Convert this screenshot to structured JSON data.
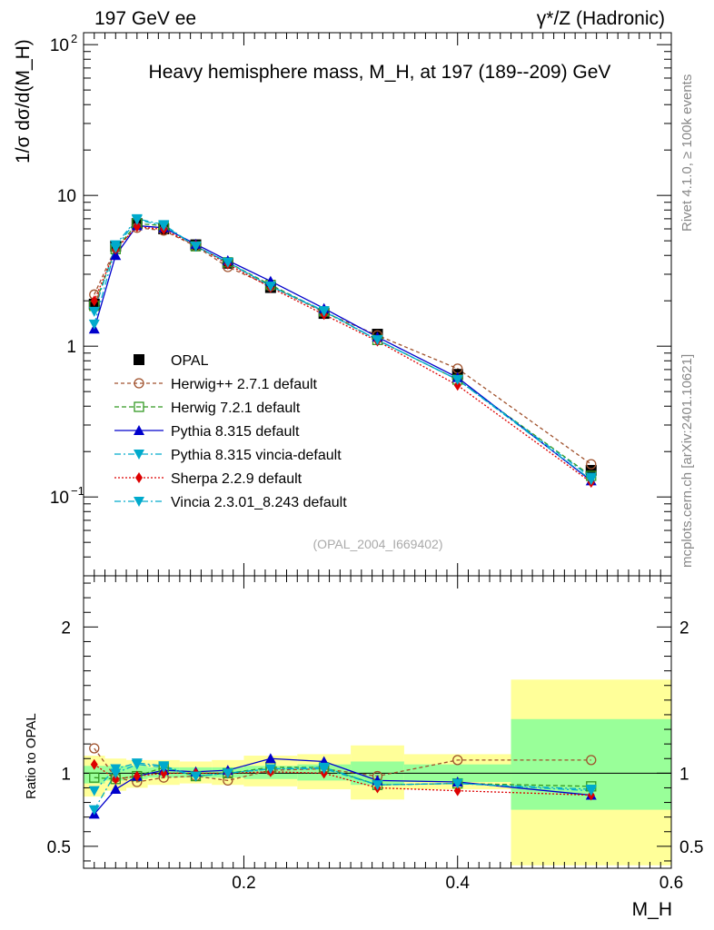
{
  "header": {
    "left_label": "197 GeV ee",
    "right_label": "γ*/Z (Hadronic)",
    "side_label_top": "Rivet 4.1.0, ≥ 100k events",
    "side_label_bottom": "mcplots.cern.ch [arXiv:2401.10621]",
    "watermark": "(OPAL_2004_I669402)"
  },
  "chart_data": {
    "type": "line",
    "title": "Heavy hemisphere mass, M_H, at 197 (189--209) GeV",
    "xlabel": "M_H",
    "ylabel": "1/σ dσ/d(M_H)",
    "ratio_ylabel": "Ratio to OPAL",
    "xlim": [
      0.05,
      0.6
    ],
    "ylim": [
      0.03,
      120
    ],
    "ratio_ylim": [
      0.35,
      2.35
    ],
    "yscale": "log",
    "x_ticks": [
      0.2,
      0.4,
      0.6
    ],
    "y_ticks": [
      0.1,
      1,
      10,
      100
    ],
    "ratio_ticks": [
      0.5,
      1,
      2
    ],
    "x": [
      0.06,
      0.08,
      0.1,
      0.125,
      0.155,
      0.185,
      0.225,
      0.275,
      0.325,
      0.4,
      0.525
    ],
    "bins": [
      [
        0.05,
        0.07
      ],
      [
        0.07,
        0.09
      ],
      [
        0.09,
        0.11
      ],
      [
        0.11,
        0.14
      ],
      [
        0.14,
        0.17
      ],
      [
        0.17,
        0.2
      ],
      [
        0.2,
        0.25
      ],
      [
        0.25,
        0.3
      ],
      [
        0.3,
        0.35
      ],
      [
        0.35,
        0.45
      ],
      [
        0.45,
        0.6
      ]
    ],
    "band_outer": [
      [
        0.84,
        1.12
      ],
      [
        0.88,
        1.1
      ],
      [
        0.9,
        1.09
      ],
      [
        0.92,
        1.09
      ],
      [
        0.93,
        1.08
      ],
      [
        0.92,
        1.09
      ],
      [
        0.91,
        1.12
      ],
      [
        0.89,
        1.13
      ],
      [
        0.82,
        1.19
      ],
      [
        0.89,
        1.13
      ],
      [
        0.37,
        1.64
      ]
    ],
    "band_inner": [
      [
        0.93,
        1.05
      ],
      [
        0.95,
        1.05
      ],
      [
        0.96,
        1.05
      ],
      [
        0.97,
        1.04
      ],
      [
        0.97,
        1.04
      ],
      [
        0.97,
        1.04
      ],
      [
        0.96,
        1.05
      ],
      [
        0.95,
        1.06
      ],
      [
        0.92,
        1.08
      ],
      [
        0.94,
        1.06
      ],
      [
        0.75,
        1.37
      ]
    ],
    "data": {
      "name": "OPAL",
      "values": [
        1.9,
        4.6,
        6.5,
        6.0,
        4.7,
        3.55,
        2.45,
        1.65,
        1.2,
        0.65,
        0.15
      ]
    },
    "series": [
      {
        "name": "Herwig++ 2.7.1 default",
        "color": "#a0522d",
        "marker": "circle-open",
        "dash": "4,3",
        "values": [
          2.2,
          4.5,
          6.1,
          5.85,
          4.6,
          3.35,
          2.5,
          1.68,
          1.18,
          0.71,
          0.165
        ],
        "ratio": [
          1.17,
          0.97,
          0.94,
          0.97,
          0.98,
          0.95,
          1.02,
          1.03,
          0.98,
          1.09,
          1.09
        ]
      },
      {
        "name": "Herwig 7.2.1 default",
        "color": "#339922",
        "marker": "square-open",
        "dash": "5,3",
        "values": [
          1.85,
          4.4,
          6.5,
          6.3,
          4.6,
          3.6,
          2.55,
          1.7,
          1.1,
          0.6,
          0.138
        ],
        "ratio": [
          0.97,
          0.96,
          0.98,
          1.04,
          0.98,
          1.0,
          1.04,
          1.04,
          0.92,
          0.93,
          0.91
        ]
      },
      {
        "name": "Pythia 8.315 default",
        "color": "#0000cc",
        "marker": "triangle-up",
        "dash": "",
        "values": [
          1.3,
          4.0,
          6.3,
          6.1,
          4.75,
          3.7,
          2.7,
          1.78,
          1.15,
          0.62,
          0.128
        ],
        "ratio": [
          0.72,
          0.89,
          0.98,
          1.02,
          1.01,
          1.02,
          1.1,
          1.08,
          0.95,
          0.94,
          0.85
        ]
      },
      {
        "name": "Pythia 8.315 vincia-default",
        "color": "#00aacc",
        "marker": "triangle-down",
        "dash": "7,3,2,3",
        "values": [
          1.7,
          4.7,
          7.0,
          6.4,
          4.6,
          3.6,
          2.5,
          1.72,
          1.1,
          0.6,
          0.135
        ],
        "ratio": [
          0.88,
          1.03,
          1.07,
          1.05,
          0.98,
          1.0,
          1.03,
          1.04,
          0.92,
          0.93,
          0.89
        ]
      },
      {
        "name": "Sherpa 2.2.9 default",
        "color": "#dd0000",
        "marker": "diamond",
        "dash": "2,2",
        "values": [
          2.0,
          4.4,
          6.2,
          5.95,
          4.65,
          3.5,
          2.45,
          1.62,
          1.08,
          0.55,
          0.125
        ],
        "ratio": [
          1.06,
          0.96,
          0.98,
          1.0,
          1.0,
          1.0,
          1.01,
          1.0,
          0.9,
          0.88,
          0.85
        ]
      },
      {
        "name": "Vincia 2.3.01_8.243 default",
        "color": "#00aacc",
        "marker": "triangle-down",
        "dash": "7,3,2,3",
        "values": [
          1.4,
          4.5,
          6.9,
          6.3,
          4.6,
          3.6,
          2.5,
          1.7,
          1.1,
          0.6,
          0.13
        ],
        "ratio": [
          0.75,
          1.0,
          1.06,
          1.04,
          0.98,
          1.0,
          1.03,
          1.03,
          0.92,
          0.93,
          0.88
        ]
      }
    ]
  }
}
